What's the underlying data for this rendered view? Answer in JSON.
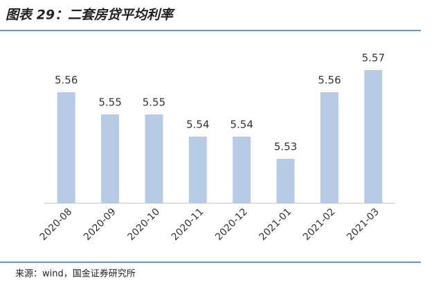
{
  "chart_data": {
    "type": "bar",
    "title": "图表 29：二套房贷平均利率",
    "categories": [
      "2020-08",
      "2020-09",
      "2020-10",
      "2020-11",
      "2020-12",
      "2021-01",
      "2021-02",
      "2021-03"
    ],
    "values": [
      5.56,
      5.55,
      5.55,
      5.54,
      5.54,
      5.53,
      5.56,
      5.57
    ],
    "color": "#b7cbe6",
    "ylim": [
      5.51,
      5.58
    ],
    "source": "来源：wind，国金证券研究所"
  }
}
